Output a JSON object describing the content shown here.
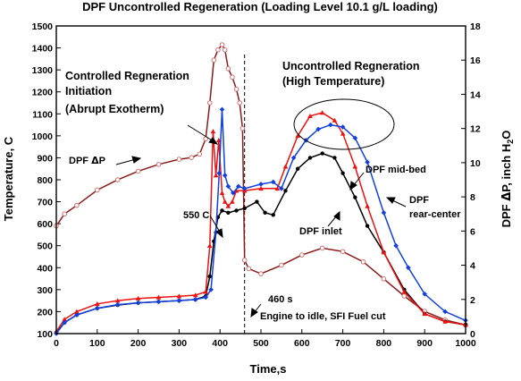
{
  "chart_data": {
    "type": "line",
    "title": "DPF Uncontrolled Regeneration (Loading Level 10.1 g/L loading)",
    "xlabel": "Time,s",
    "ylabel": "Temperature, C",
    "y2label_main": "DPF ",
    "y2label_delta": "Δ",
    "y2label_after": "P, inch H",
    "y2label_sub": "2",
    "y2label_end": "O",
    "xlim": [
      0,
      1000
    ],
    "ylim": [
      100,
      1500
    ],
    "y2lim": [
      0,
      18
    ],
    "xticks": [
      0,
      100,
      200,
      300,
      400,
      500,
      600,
      700,
      800,
      900,
      1000
    ],
    "yticks": [
      100,
      200,
      300,
      400,
      500,
      600,
      700,
      800,
      900,
      1000,
      1100,
      1200,
      1300,
      1400,
      1500
    ],
    "y2ticks": [
      0,
      2,
      4,
      6,
      8,
      10,
      12,
      14,
      16,
      18
    ],
    "grid": false,
    "legend": "none",
    "series": [
      {
        "name": "DPF ΔP",
        "color": "#8b1a1a",
        "marker": "open-circle",
        "axis": "right",
        "x": [
          0,
          20,
          50,
          100,
          150,
          200,
          250,
          300,
          330,
          350,
          365,
          375,
          385,
          395,
          405,
          412,
          420,
          430,
          440,
          448,
          455,
          460,
          470,
          500,
          550,
          600,
          650,
          700,
          750,
          800,
          850,
          900,
          950,
          1000
        ],
        "y": [
          6.3,
          7.0,
          7.5,
          8.4,
          9.0,
          9.5,
          9.9,
          10.2,
          10.3,
          10.5,
          11.4,
          13.5,
          16.0,
          16.6,
          16.9,
          16.6,
          15.5,
          15.0,
          14.3,
          13.5,
          12.0,
          4.3,
          3.8,
          3.5,
          4.0,
          4.6,
          5.0,
          4.8,
          4.2,
          3.2,
          2.2,
          1.3,
          0.8,
          0.5
        ]
      },
      {
        "name": "DPF inlet",
        "color": "#000000",
        "marker": "filled-circle",
        "axis": "left",
        "x": [
          0,
          20,
          50,
          100,
          150,
          200,
          250,
          300,
          340,
          365,
          375,
          385,
          395,
          405,
          420,
          440,
          460,
          490,
          510,
          530,
          560,
          590,
          620,
          650,
          680,
          700,
          730,
          760,
          800,
          850,
          900,
          950,
          1000
        ],
        "y": [
          105,
          150,
          185,
          215,
          230,
          240,
          245,
          250,
          255,
          270,
          360,
          520,
          630,
          660,
          650,
          660,
          670,
          700,
          650,
          640,
          750,
          850,
          900,
          920,
          900,
          830,
          720,
          590,
          470,
          300,
          190,
          155,
          140
        ]
      },
      {
        "name": "DPF mid-bed",
        "color": "#ee1111",
        "marker": "filled-triangle",
        "axis": "left",
        "x": [
          0,
          20,
          50,
          100,
          150,
          200,
          250,
          300,
          340,
          365,
          375,
          383,
          390,
          397,
          405,
          412,
          420,
          430,
          440,
          460,
          500,
          540,
          560,
          590,
          620,
          650,
          680,
          700,
          730,
          760,
          800,
          850,
          900,
          950,
          1000
        ],
        "y": [
          110,
          165,
          200,
          235,
          250,
          260,
          265,
          270,
          275,
          290,
          500,
          1020,
          820,
          980,
          740,
          700,
          680,
          700,
          750,
          750,
          760,
          760,
          860,
          1000,
          1090,
          1105,
          1070,
          1010,
          860,
          680,
          470,
          290,
          190,
          155,
          140
        ]
      },
      {
        "name": "DPF rear-center",
        "color": "#1040e0",
        "marker": "filled-diamond",
        "axis": "left",
        "x": [
          0,
          20,
          50,
          100,
          150,
          200,
          250,
          300,
          340,
          365,
          378,
          390,
          398,
          405,
          412,
          420,
          432,
          445,
          460,
          500,
          530,
          550,
          580,
          610,
          640,
          670,
          700,
          730,
          760,
          800,
          830,
          860,
          900,
          950,
          1000
        ],
        "y": [
          100,
          150,
          185,
          215,
          232,
          240,
          245,
          250,
          255,
          265,
          300,
          560,
          830,
          1120,
          820,
          770,
          740,
          770,
          760,
          780,
          790,
          760,
          900,
          980,
          1030,
          1050,
          1040,
          990,
          880,
          650,
          500,
          400,
          280,
          200,
          160
        ]
      }
    ],
    "annotations": {
      "controlled_line1": "Controlled Regneration",
      "controlled_line2": "Initiation",
      "controlled_line3": "(Abrupt Exotherm)",
      "uncontrolled_line1": "Uncontrolled Regneration",
      "uncontrolled_line2": "(High Temperature)",
      "dpf_dp_prefix": "DPF ",
      "dpf_dp_delta": "Δ",
      "dpf_dp_suffix": "P",
      "label_550": "550 C",
      "label_inlet": "DPF inlet",
      "label_midbed": "DPF mid-bed",
      "label_rear1": "DPF",
      "label_rear2": "rear-center",
      "label_460": "460 s",
      "label_idle": "Engine to idle, SFI Fuel cut",
      "vline_x": 460
    }
  }
}
